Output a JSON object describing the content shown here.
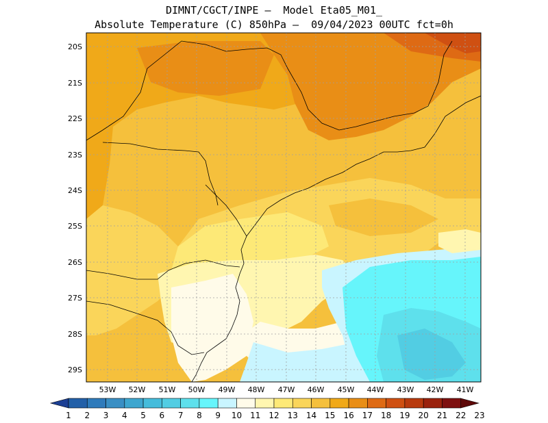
{
  "header": {
    "line1": "DIMNT/CGCT/INPE –  Model Eta05_M01_",
    "line2": "Absolute Temperature (C) 850hPa –  09/04/2023 00UTC fct=0h"
  },
  "map": {
    "lat_labels": [
      "20S",
      "21S",
      "22S",
      "23S",
      "24S",
      "25S",
      "26S",
      "27S",
      "28S",
      "29S"
    ],
    "lon_labels": [
      "53W",
      "52W",
      "51W",
      "50W",
      "49W",
      "48W",
      "47W",
      "46W",
      "45W",
      "44W",
      "43W",
      "42W",
      "41W"
    ],
    "grid": true,
    "lat_range": [
      -29.5,
      -19.7
    ],
    "lon_range": [
      -53.8,
      -40.6
    ]
  },
  "colorbar": {
    "labels": [
      "1",
      "2",
      "3",
      "4",
      "5",
      "6",
      "7",
      "8",
      "9",
      "10",
      "11",
      "12",
      "13",
      "14",
      "15",
      "16",
      "17",
      "18",
      "19",
      "20",
      "21",
      "22",
      "23"
    ],
    "colors": [
      "#1c3f94",
      "#2360a8",
      "#2f7bbb",
      "#3a8fc4",
      "#3ea6cf",
      "#45bcdb",
      "#52cde3",
      "#5ee0ec",
      "#66f5fb",
      "#c9f5ff",
      "#fffbe9",
      "#fff6b0",
      "#fde977",
      "#fad55a",
      "#f5c03c",
      "#f0a919",
      "#e98e16",
      "#de6a14",
      "#cf5012",
      "#b83a0e",
      "#9a220d",
      "#7e1010",
      "#5e0808"
    ]
  }
}
